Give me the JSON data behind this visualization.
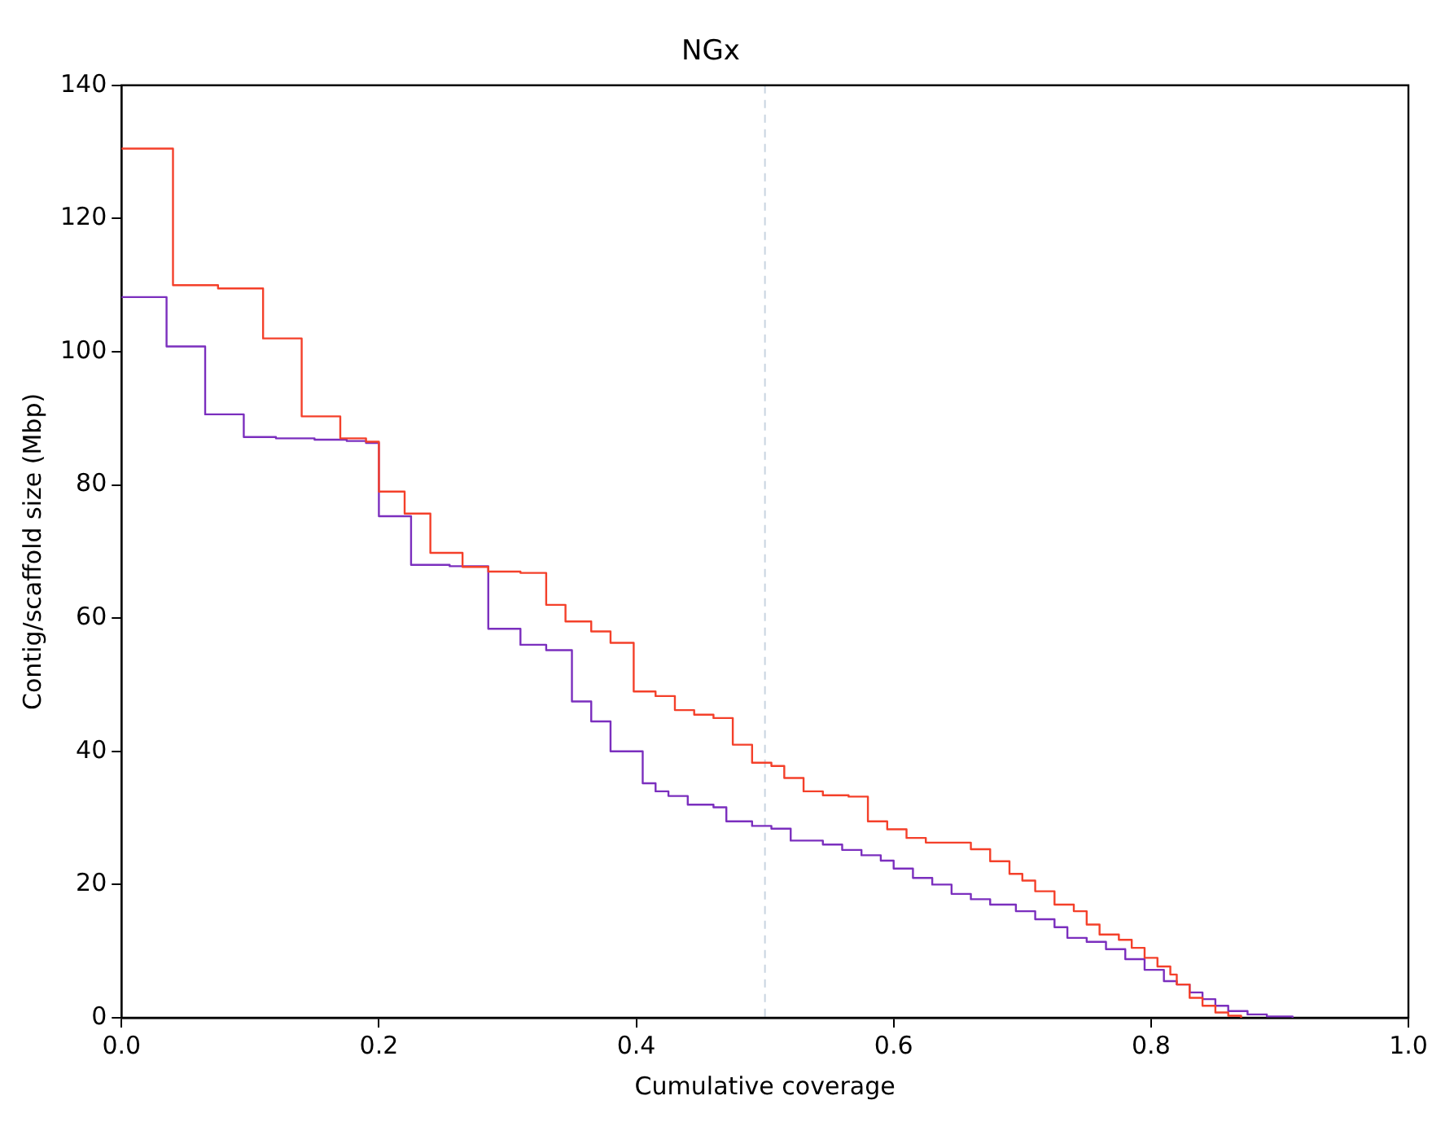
{
  "chart_data": {
    "type": "step",
    "title": "NGx",
    "xlabel": "Cumulative coverage",
    "ylabel": "Contig/scaffold size (Mbp)",
    "xlim": [
      0,
      1
    ],
    "xticks": [
      {
        "value": 0,
        "label": "0.0"
      },
      {
        "value": 0.2,
        "label": "0.2"
      },
      {
        "value": 0.4,
        "label": "0.4"
      },
      {
        "value": 0.6,
        "label": "0.6"
      },
      {
        "value": 0.8,
        "label": "0.8"
      },
      {
        "value": 1,
        "label": "1.0"
      }
    ],
    "ylim": [
      0,
      140
    ],
    "yticks": [
      0,
      20,
      40,
      60,
      80,
      100,
      120,
      140
    ],
    "grid": false,
    "legend": false,
    "ref_lines": [
      {
        "axis": "x",
        "value": 0.5,
        "color": "#c8d4e0",
        "line_style": "dashed"
      }
    ],
    "series": [
      {
        "color": "#f4402a",
        "x": [
          0,
          0.04,
          0.075,
          0.11,
          0.14,
          0.17,
          0.19,
          0.2,
          0.22,
          0.24,
          0.265,
          0.285,
          0.31,
          0.33,
          0.345,
          0.365,
          0.38,
          0.398,
          0.415,
          0.43,
          0.445,
          0.46,
          0.475,
          0.49,
          0.505,
          0.515,
          0.53,
          0.545,
          0.565,
          0.58,
          0.595,
          0.61,
          0.625,
          0.66,
          0.675,
          0.69,
          0.7,
          0.71,
          0.725,
          0.74,
          0.75,
          0.76,
          0.775,
          0.785,
          0.795,
          0.805,
          0.815,
          0.82,
          0.83,
          0.84,
          0.85,
          0.86,
          0.87
        ],
        "values": [
          130.5,
          110,
          109.5,
          102,
          90.3,
          87,
          86.5,
          79,
          75.7,
          69.8,
          67.7,
          67,
          66.8,
          62,
          59.5,
          58,
          56.3,
          49,
          48.3,
          46.2,
          45.5,
          45,
          41,
          38.3,
          37.8,
          36,
          34,
          33.4,
          33.2,
          29.5,
          28.3,
          27,
          26.3,
          25.3,
          23.5,
          21.6,
          20.6,
          19,
          17,
          16,
          14,
          12.5,
          11.7,
          10.5,
          9,
          7.7,
          6.5,
          5,
          3,
          1.8,
          0.8,
          0.3,
          0
        ]
      },
      {
        "color": "#7b2fbe",
        "x": [
          0,
          0.035,
          0.065,
          0.095,
          0.12,
          0.15,
          0.175,
          0.19,
          0.2,
          0.225,
          0.255,
          0.285,
          0.31,
          0.33,
          0.35,
          0.365,
          0.38,
          0.405,
          0.415,
          0.425,
          0.44,
          0.46,
          0.47,
          0.49,
          0.505,
          0.52,
          0.545,
          0.56,
          0.575,
          0.59,
          0.6,
          0.615,
          0.63,
          0.645,
          0.66,
          0.675,
          0.695,
          0.71,
          0.725,
          0.735,
          0.75,
          0.765,
          0.78,
          0.795,
          0.81,
          0.82,
          0.83,
          0.84,
          0.85,
          0.86,
          0.875,
          0.89,
          0.91
        ],
        "values": [
          108.2,
          100.8,
          90.6,
          87.2,
          87,
          86.8,
          86.6,
          86.3,
          75.3,
          68,
          67.8,
          58.4,
          56,
          55.2,
          47.5,
          44.5,
          40,
          35.2,
          34,
          33.3,
          32,
          31.6,
          29.5,
          28.8,
          28.4,
          26.6,
          26,
          25.2,
          24.4,
          23.6,
          22.4,
          21,
          20,
          18.6,
          17.8,
          17,
          16,
          14.8,
          13.6,
          12,
          11.4,
          10.3,
          8.8,
          7.2,
          5.5,
          5,
          3.8,
          2.8,
          1.8,
          1,
          0.5,
          0.2,
          0
        ]
      }
    ]
  }
}
